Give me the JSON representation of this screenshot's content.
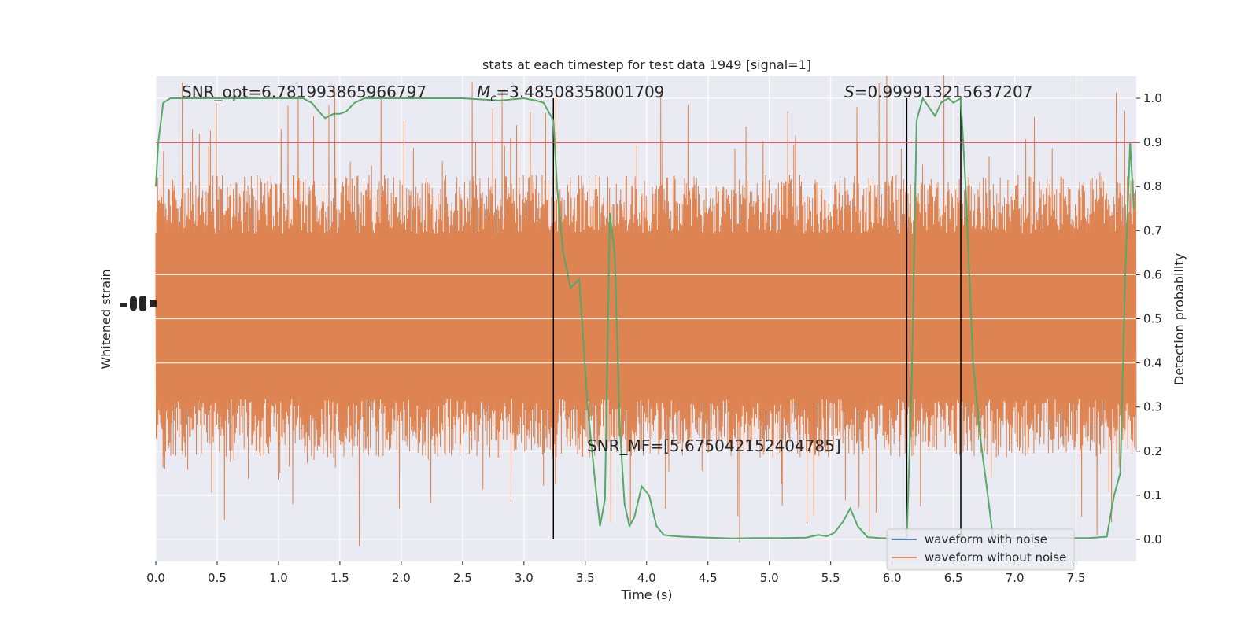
{
  "chart_data": {
    "type": "line",
    "title": "stats at each timestep for test data 1949 [signal=1]",
    "xlabel": "Time (s)",
    "ylabel_left": "Whitened strain",
    "ylabel_right": "Detection probability",
    "xlim": [
      0.0,
      7.99
    ],
    "ylim_right": [
      -0.05,
      1.05
    ],
    "x_ticks": [
      "0.0",
      "0.5",
      "1.0",
      "1.5",
      "2.0",
      "2.5",
      "3.0",
      "3.5",
      "4.0",
      "4.5",
      "5.0",
      "5.5",
      "6.0",
      "6.5",
      "7.0",
      "7.5"
    ],
    "y_ticks_right": [
      "0.0",
      "0.1",
      "0.2",
      "0.3",
      "0.4",
      "0.5",
      "0.6",
      "0.7",
      "0.8",
      "0.9",
      "1.0"
    ],
    "threshold": 0.9,
    "annotations": {
      "snr_opt": "SNR_opt=6.781993865966797",
      "mc_symbol": "M",
      "mc_subscript": "c",
      "mc_value": "=3.48508358001709",
      "s_symbol": "S",
      "s_value": "=0.999913215637207",
      "snr_mf": "SNR_MF=[5.675042152404785]"
    },
    "vertical_lines": [
      3.24,
      6.12,
      6.56
    ],
    "legend": {
      "placement": "lower-right",
      "entries": [
        "waveform with noise",
        "waveform without noise"
      ]
    },
    "series": [
      {
        "name": "Detection probability",
        "x": [
          0.0,
          0.02,
          0.06,
          0.12,
          0.2,
          0.3,
          0.5,
          0.7,
          0.9,
          1.1,
          1.2,
          1.27,
          1.33,
          1.38,
          1.45,
          1.5,
          1.55,
          1.62,
          1.7,
          1.9,
          2.2,
          2.5,
          2.8,
          3.0,
          3.1,
          3.16,
          3.24,
          3.27,
          3.32,
          3.38,
          3.45,
          3.52,
          3.58,
          3.62,
          3.66,
          3.7,
          3.74,
          3.78,
          3.82,
          3.86,
          3.9,
          3.96,
          4.02,
          4.08,
          4.14,
          4.2,
          4.3,
          4.5,
          4.7,
          4.9,
          5.1,
          5.3,
          5.4,
          5.47,
          5.53,
          5.6,
          5.66,
          5.72,
          5.8,
          5.9,
          6.0,
          6.08,
          6.12,
          6.16,
          6.2,
          6.25,
          6.3,
          6.35,
          6.4,
          6.46,
          6.5,
          6.56,
          6.6,
          6.66,
          6.72,
          6.78,
          6.82,
          6.86,
          6.9,
          7.0,
          7.2,
          7.4,
          7.6,
          7.75,
          7.81,
          7.86,
          7.9,
          7.94,
          7.97
        ],
        "y": [
          0.8,
          0.9,
          0.99,
          1.0,
          1.0,
          1.0,
          1.0,
          1.0,
          1.0,
          1.0,
          1.0,
          0.99,
          0.97,
          0.955,
          0.965,
          0.965,
          0.97,
          0.99,
          1.0,
          1.0,
          1.0,
          1.0,
          0.995,
          1.0,
          0.995,
          0.99,
          0.95,
          0.8,
          0.65,
          0.57,
          0.59,
          0.3,
          0.13,
          0.03,
          0.09,
          0.74,
          0.65,
          0.26,
          0.08,
          0.03,
          0.05,
          0.12,
          0.1,
          0.03,
          0.01,
          0.008,
          0.006,
          0.004,
          0.002,
          0.003,
          0.003,
          0.004,
          0.01,
          0.007,
          0.015,
          0.04,
          0.07,
          0.03,
          0.005,
          0.003,
          0.002,
          0.002,
          0.002,
          0.35,
          0.95,
          1.0,
          0.98,
          0.96,
          0.99,
          1.0,
          0.99,
          1.0,
          0.8,
          0.4,
          0.23,
          0.1,
          0.01,
          0.004,
          0.003,
          0.003,
          0.003,
          0.003,
          0.003,
          0.006,
          0.1,
          0.15,
          0.6,
          0.9,
          0.75
        ]
      }
    ]
  },
  "colors": {
    "plot_background": "#eaeaf2",
    "grid": "#ffffff",
    "noisy_waveform": "#4c72b0",
    "clean_waveform": "#dd8452",
    "probability": "#55a868",
    "threshold": "#c44e52",
    "markers": "#000000"
  }
}
